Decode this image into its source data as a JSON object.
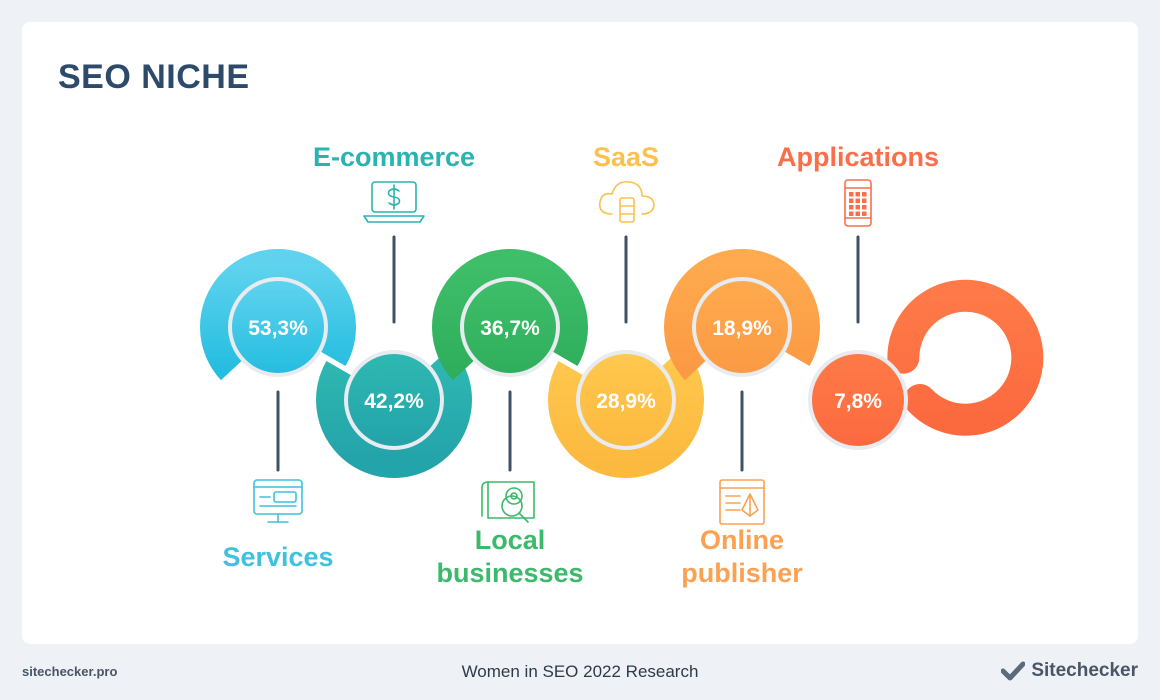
{
  "title": "SEO NICHE",
  "chart_data": {
    "type": "pie",
    "title": "SEO NICHE",
    "categories": [
      "Services",
      "E-commerce",
      "Local businesses",
      "SaaS",
      "Online publisher",
      "Applications"
    ],
    "values": [
      53.3,
      42.2,
      36.7,
      28.9,
      18.9,
      7.8
    ],
    "value_labels": [
      "53,3%",
      "42,2%",
      "36,7%",
      "28,9%",
      "18,9%",
      "7,8%"
    ],
    "label_lines": [
      [
        "Services"
      ],
      [
        "E-commerce"
      ],
      [
        "Local",
        "businesses"
      ],
      [
        "SaaS"
      ],
      [
        "Online",
        "publisher"
      ],
      [
        "Applications"
      ]
    ],
    "icons": [
      "browser-window-icon",
      "laptop-dollar-icon",
      "map-location-icon",
      "cloud-server-icon",
      "document-pen-icon",
      "smartphone-apps-icon"
    ],
    "colors": [
      "#3fc1e0",
      "#2bb3b1",
      "#3cb96b",
      "#fcc04e",
      "#fba152",
      "#fb6e4a"
    ],
    "light_colors": [
      "#5fd3ee",
      "#2fb8b1",
      "#3fbe6a",
      "#ffc84e",
      "#ffaa4e",
      "#ff7a48"
    ],
    "dark_colors": [
      "#25bde0",
      "#23a3aa",
      "#2fae5b",
      "#fcb93f",
      "#fb9a44",
      "#fb6a3f"
    ]
  },
  "footer": {
    "left": "sitechecker.pro",
    "center": "Women in SEO 2022 Research",
    "brand": "Sitechecker"
  }
}
